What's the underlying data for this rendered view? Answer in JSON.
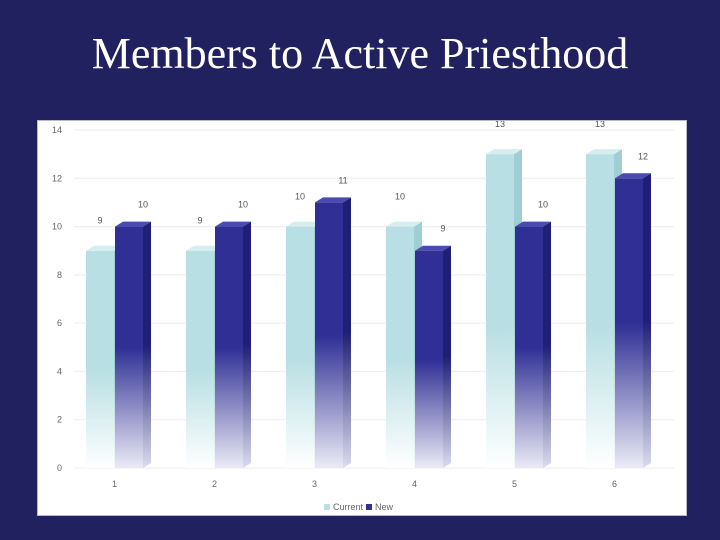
{
  "slide": {
    "title": "Members to Active Priesthood"
  },
  "chart_data": {
    "type": "bar",
    "categories": [
      "1",
      "2",
      "3",
      "4",
      "5",
      "6"
    ],
    "series": [
      {
        "name": "Current",
        "values": [
          9,
          9,
          10,
          10,
          13,
          13
        ],
        "labels": [
          "9",
          "9",
          "10",
          "10",
          "13",
          "13"
        ],
        "color": "#b8dfe3"
      },
      {
        "name": "New",
        "values": [
          10,
          10,
          11,
          9,
          10,
          12
        ],
        "labels": [
          "10",
          "10",
          "11",
          "9",
          "10",
          "12"
        ],
        "color": "#2f2f95"
      }
    ],
    "yticks": [
      "0",
      "2",
      "4",
      "6",
      "8",
      "10",
      "12",
      "14"
    ],
    "ylim": [
      0,
      14
    ],
    "grid": true,
    "legend": "bottom"
  }
}
